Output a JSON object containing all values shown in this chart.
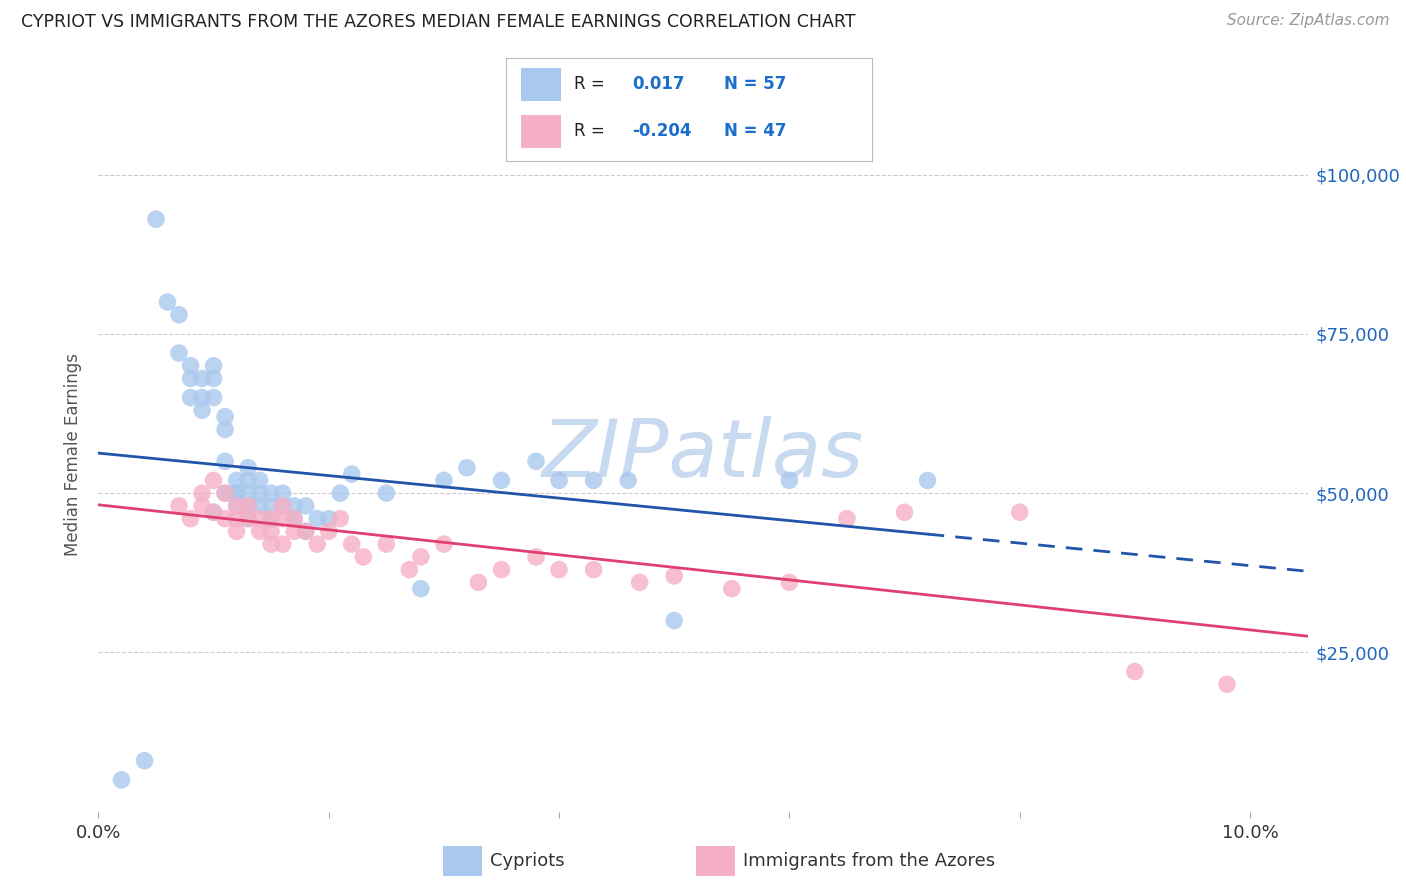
{
  "title": "CYPRIOT VS IMMIGRANTS FROM THE AZORES MEDIAN FEMALE EARNINGS CORRELATION CHART",
  "source": "Source: ZipAtlas.com",
  "ylabel": "Median Female Earnings",
  "xlim": [
    0.0,
    0.105
  ],
  "ylim": [
    0,
    112000
  ],
  "yticks": [
    0,
    25000,
    50000,
    75000,
    100000
  ],
  "ytick_labels_right": [
    "",
    "$25,000",
    "$50,000",
    "$75,000",
    "$100,000"
  ],
  "xtick_positions": [
    0.0,
    0.02,
    0.04,
    0.06,
    0.08,
    0.1
  ],
  "xtick_labels": [
    "0.0%",
    "",
    "",
    "",
    "",
    "10.0%"
  ],
  "blue_dot_color": "#a8c8ee",
  "pink_dot_color": "#f5b0c5",
  "blue_line_color": "#2255aa",
  "pink_line_color": "#e04070",
  "accent_color": "#1a6ecc",
  "watermark_color": "#c8daef",
  "grid_color": "#cccccc",
  "title_color": "#222222",
  "source_color": "#999999",
  "right_tick_color": "#2266bb",
  "background_color": "#ffffff",
  "blue_dots_x": [
    0.002,
    0.004,
    0.005,
    0.006,
    0.007,
    0.007,
    0.008,
    0.008,
    0.008,
    0.009,
    0.009,
    0.009,
    0.01,
    0.01,
    0.01,
    0.01,
    0.011,
    0.011,
    0.011,
    0.011,
    0.012,
    0.012,
    0.012,
    0.012,
    0.013,
    0.013,
    0.013,
    0.013,
    0.013,
    0.014,
    0.014,
    0.014,
    0.015,
    0.015,
    0.015,
    0.016,
    0.016,
    0.017,
    0.017,
    0.018,
    0.018,
    0.019,
    0.02,
    0.021,
    0.022,
    0.025,
    0.028,
    0.03,
    0.032,
    0.035,
    0.038,
    0.04,
    0.043,
    0.046,
    0.05,
    0.06,
    0.072
  ],
  "blue_dots_y": [
    5000,
    8000,
    93000,
    80000,
    78000,
    72000,
    70000,
    65000,
    68000,
    65000,
    63000,
    68000,
    65000,
    68000,
    70000,
    47000,
    60000,
    62000,
    55000,
    50000,
    50000,
    52000,
    50000,
    48000,
    52000,
    54000,
    50000,
    48000,
    46000,
    48000,
    50000,
    52000,
    48000,
    50000,
    46000,
    50000,
    48000,
    48000,
    46000,
    48000,
    44000,
    46000,
    46000,
    50000,
    53000,
    50000,
    35000,
    52000,
    54000,
    52000,
    55000,
    52000,
    52000,
    52000,
    30000,
    52000,
    52000
  ],
  "pink_dots_x": [
    0.007,
    0.008,
    0.009,
    0.009,
    0.01,
    0.01,
    0.011,
    0.011,
    0.012,
    0.012,
    0.012,
    0.013,
    0.013,
    0.014,
    0.014,
    0.015,
    0.015,
    0.015,
    0.016,
    0.016,
    0.016,
    0.017,
    0.017,
    0.018,
    0.019,
    0.02,
    0.021,
    0.022,
    0.023,
    0.025,
    0.027,
    0.028,
    0.03,
    0.033,
    0.035,
    0.038,
    0.04,
    0.043,
    0.047,
    0.05,
    0.055,
    0.06,
    0.065,
    0.07,
    0.08,
    0.09,
    0.098
  ],
  "pink_dots_y": [
    48000,
    46000,
    48000,
    50000,
    52000,
    47000,
    50000,
    46000,
    48000,
    44000,
    46000,
    46000,
    48000,
    44000,
    46000,
    46000,
    44000,
    42000,
    48000,
    46000,
    42000,
    44000,
    46000,
    44000,
    42000,
    44000,
    46000,
    42000,
    40000,
    42000,
    38000,
    40000,
    42000,
    36000,
    38000,
    40000,
    38000,
    38000,
    36000,
    37000,
    35000,
    36000,
    46000,
    47000,
    47000,
    22000,
    20000
  ]
}
